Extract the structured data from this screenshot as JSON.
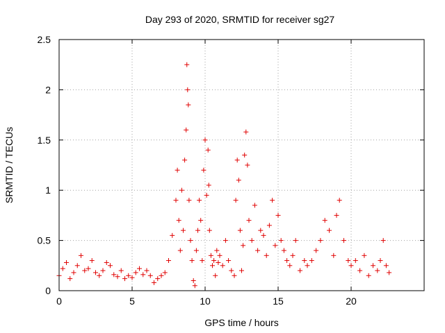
{
  "chart_data": {
    "type": "scatter",
    "title": "Day 293 of 2020, SRMTID for receiver sg27",
    "xlabel": "GPS time / hours",
    "ylabel": "SRMTID / TECUs",
    "xlim": [
      0,
      25
    ],
    "ylim": [
      0,
      2.5
    ],
    "xticks": [
      0,
      5,
      10,
      15,
      20
    ],
    "xtick_labels": [
      "0",
      "5",
      "10",
      "15",
      "20"
    ],
    "yticks": [
      0,
      0.5,
      1,
      1.5,
      2,
      2.5
    ],
    "ytick_labels": [
      "0",
      "0.5",
      "1",
      "1.5",
      "2",
      "2.5"
    ],
    "grid": true,
    "marker": "+",
    "color": "#e00000",
    "series": [
      {
        "name": "SRMTID",
        "x": [
          0.0,
          0.25,
          0.5,
          0.75,
          1.0,
          1.25,
          1.5,
          1.75,
          2.0,
          2.25,
          2.5,
          2.75,
          3.0,
          3.25,
          3.5,
          3.75,
          4.0,
          4.25,
          4.5,
          4.75,
          5.0,
          5.25,
          5.5,
          5.75,
          6.0,
          6.25,
          6.5,
          6.75,
          7.0,
          7.25,
          7.5,
          7.75,
          8.0,
          8.1,
          8.2,
          8.3,
          8.4,
          8.5,
          8.6,
          8.7,
          8.75,
          8.8,
          8.85,
          8.9,
          9.0,
          9.1,
          9.2,
          9.3,
          9.4,
          9.5,
          9.6,
          9.7,
          9.8,
          9.9,
          10.0,
          10.1,
          10.2,
          10.25,
          10.3,
          10.4,
          10.5,
          10.6,
          10.7,
          10.8,
          10.9,
          11.0,
          11.2,
          11.4,
          11.6,
          11.8,
          12.0,
          12.1,
          12.2,
          12.3,
          12.4,
          12.5,
          12.6,
          12.7,
          12.8,
          12.9,
          13.0,
          13.2,
          13.4,
          13.6,
          13.8,
          14.0,
          14.2,
          14.4,
          14.6,
          14.8,
          15.0,
          15.2,
          15.4,
          15.6,
          15.8,
          16.0,
          16.2,
          16.5,
          16.8,
          17.0,
          17.3,
          17.6,
          17.9,
          18.2,
          18.5,
          18.8,
          19.0,
          19.2,
          19.5,
          19.8,
          20.0,
          20.3,
          20.6,
          20.9,
          21.2,
          21.5,
          21.8,
          22.0,
          22.2,
          22.4,
          22.6
        ],
        "y": [
          0.15,
          0.22,
          0.28,
          0.12,
          0.18,
          0.25,
          0.35,
          0.2,
          0.22,
          0.3,
          0.18,
          0.15,
          0.2,
          0.28,
          0.25,
          0.16,
          0.14,
          0.2,
          0.12,
          0.15,
          0.13,
          0.18,
          0.22,
          0.16,
          0.2,
          0.15,
          0.08,
          0.12,
          0.15,
          0.18,
          0.3,
          0.55,
          0.9,
          1.2,
          0.7,
          0.4,
          1.0,
          0.6,
          1.3,
          1.6,
          2.25,
          2.0,
          1.85,
          0.9,
          0.5,
          0.3,
          0.1,
          0.05,
          0.4,
          0.6,
          0.9,
          0.7,
          0.3,
          1.2,
          1.5,
          0.95,
          1.4,
          1.05,
          0.6,
          0.35,
          0.25,
          0.3,
          0.15,
          0.4,
          0.28,
          0.35,
          0.25,
          0.5,
          0.3,
          0.2,
          0.15,
          0.9,
          1.3,
          1.1,
          0.6,
          0.2,
          0.45,
          1.35,
          1.58,
          1.25,
          0.7,
          0.5,
          0.85,
          0.4,
          0.6,
          0.55,
          0.35,
          0.65,
          0.9,
          0.45,
          0.75,
          0.5,
          0.4,
          0.3,
          0.25,
          0.35,
          0.5,
          0.2,
          0.3,
          0.25,
          0.3,
          0.4,
          0.5,
          0.7,
          0.6,
          0.35,
          0.75,
          0.9,
          0.5,
          0.3,
          0.25,
          0.3,
          0.2,
          0.35,
          0.15,
          0.25,
          0.2,
          0.3,
          0.5,
          0.25,
          0.18
        ]
      }
    ]
  }
}
